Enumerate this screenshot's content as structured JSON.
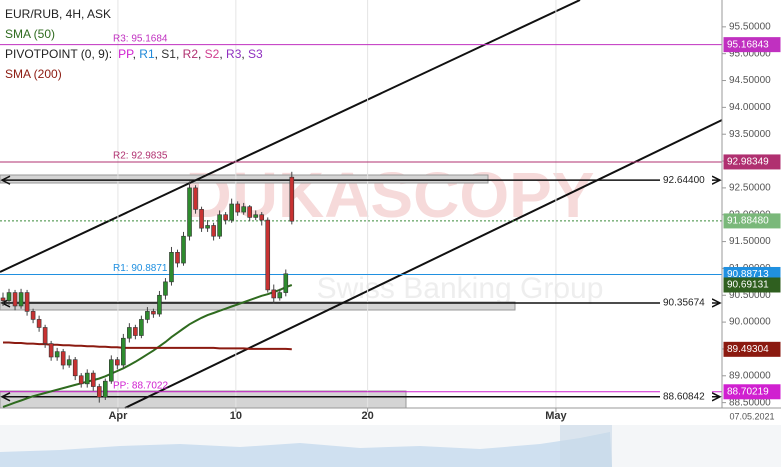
{
  "chart_data": {
    "type": "candlestick",
    "title": "EUR/RUB, 4H, ASK",
    "up_color": "#2e8b2e",
    "down_color": "#c83232",
    "open": [
      90.45,
      90.4,
      90.55,
      90.3,
      90.55,
      90.2,
      90.05,
      89.9,
      89.6,
      89.35,
      89.45,
      89.2,
      89.3,
      89.0,
      88.85,
      89.05,
      88.8,
      88.6,
      88.9,
      89.3,
      89.2,
      89.7,
      89.9,
      89.75,
      90.05,
      90.2,
      90.15,
      90.5,
      90.75,
      91.3,
      91.1,
      91.6,
      92.5,
      92.1,
      91.75,
      91.8,
      91.6,
      92.0,
      91.9,
      92.2,
      92.05,
      92.15,
      91.95,
      92.0,
      91.9,
      90.6,
      90.45,
      90.55,
      92.7
    ],
    "high": [
      90.55,
      90.62,
      90.6,
      90.62,
      90.6,
      90.25,
      90.12,
      89.95,
      89.65,
      89.52,
      89.5,
      89.38,
      89.35,
      89.05,
      89.12,
      89.1,
      88.85,
      88.95,
      89.38,
      89.35,
      89.78,
      89.98,
      89.95,
      90.12,
      90.28,
      90.25,
      90.58,
      90.82,
      91.4,
      91.35,
      91.68,
      92.62,
      92.55,
      92.15,
      91.9,
      91.85,
      92.08,
      92.05,
      92.3,
      92.25,
      92.22,
      92.18,
      92.08,
      92.05,
      91.95,
      90.7,
      90.62,
      90.98,
      92.8
    ],
    "low": [
      90.3,
      90.32,
      90.22,
      90.25,
      90.12,
      89.98,
      89.82,
      89.52,
      89.28,
      89.28,
      89.12,
      89.15,
      88.92,
      88.78,
      88.78,
      88.72,
      88.5,
      88.55,
      88.85,
      89.12,
      89.15,
      89.62,
      89.68,
      89.7,
      89.98,
      90.08,
      90.1,
      90.42,
      90.68,
      91.02,
      91.05,
      91.52,
      92.02,
      91.68,
      91.68,
      91.52,
      91.55,
      91.82,
      91.85,
      91.98,
      92.0,
      91.88,
      91.9,
      91.8,
      90.55,
      90.35,
      90.4,
      90.48,
      91.82
    ],
    "close": [
      90.4,
      90.55,
      90.3,
      90.55,
      90.2,
      90.05,
      89.9,
      89.6,
      89.35,
      89.45,
      89.2,
      89.3,
      89.0,
      88.85,
      89.05,
      88.8,
      88.6,
      88.9,
      89.3,
      89.2,
      89.7,
      89.9,
      89.75,
      90.05,
      90.2,
      90.15,
      90.5,
      90.75,
      91.3,
      91.1,
      91.6,
      92.5,
      92.1,
      91.75,
      91.8,
      91.6,
      92.0,
      91.9,
      92.2,
      92.05,
      92.15,
      91.95,
      92.0,
      91.9,
      90.6,
      90.45,
      90.55,
      90.9,
      91.88
    ],
    "last_price": {
      "value": 91.8848,
      "label": "91.88480"
    },
    "series": [
      {
        "name": "SMA (50)",
        "color": "#2f6b1f",
        "values": [
          88.42,
          88.46,
          88.5,
          88.54,
          88.58,
          88.62,
          88.65,
          88.68,
          88.71,
          88.74,
          88.77,
          88.8,
          88.83,
          88.86,
          88.89,
          88.92,
          88.95,
          88.99,
          89.04,
          89.09,
          89.14,
          89.2,
          89.26,
          89.33,
          89.4,
          89.47,
          89.55,
          89.63,
          89.72,
          89.8,
          89.88,
          89.96,
          90.02,
          90.08,
          90.13,
          90.17,
          90.21,
          90.25,
          90.29,
          90.33,
          90.37,
          90.41,
          90.45,
          90.49,
          90.52,
          90.56,
          90.6,
          90.65,
          90.69131
        ]
      },
      {
        "name": "SMA (200)",
        "color": "#8b1a10",
        "values": [
          89.62,
          89.62,
          89.61,
          89.61,
          89.6,
          89.6,
          89.59,
          89.59,
          89.58,
          89.58,
          89.57,
          89.57,
          89.56,
          89.56,
          89.55,
          89.55,
          89.54,
          89.54,
          89.53,
          89.53,
          89.52,
          89.52,
          89.52,
          89.52,
          89.52,
          89.52,
          89.52,
          89.52,
          89.52,
          89.52,
          89.52,
          89.52,
          89.52,
          89.52,
          89.52,
          89.52,
          89.51,
          89.51,
          89.51,
          89.51,
          89.51,
          89.5,
          89.5,
          89.5,
          89.5,
          89.5,
          89.5,
          89.5,
          89.49304
        ]
      }
    ],
    "pivot_label": "PIVOTPOINT (0, 9):",
    "pivot_legend": [
      {
        "name": "PP",
        "color": "#d020d0"
      },
      {
        "name": "R1",
        "color": "#1e88d8"
      },
      {
        "name": "S1",
        "color": "#333333"
      },
      {
        "name": "R2",
        "color": "#b03070"
      },
      {
        "name": "S2",
        "color": "#d04090"
      },
      {
        "name": "R3",
        "color": "#9030c0"
      },
      {
        "name": "S3",
        "color": "#9030c0"
      }
    ],
    "pivot_levels": [
      {
        "text": "R3: 95.1684",
        "value": 95.16843,
        "color": "#c030c0"
      },
      {
        "text": "R2: 92.9835",
        "value": 92.98349,
        "color": "#b03070"
      },
      {
        "text": "R1: 90.8871",
        "value": 90.88713,
        "color": "#2090e0"
      },
      {
        "text": "PP: 88.7022",
        "value": 88.70219,
        "color": "#d020d0"
      }
    ],
    "levels": [
      {
        "value": 92.644,
        "label": "92.64400"
      },
      {
        "value": 90.35674,
        "label": "90.35674"
      },
      {
        "value": 88.60842,
        "label": "88.60842"
      }
    ],
    "watermark": [
      "DUKASCOPY",
      "Swiss Banking Group"
    ],
    "date_label": "07.05.2021",
    "xlim": [
      0,
      120
    ],
    "xticks": [
      {
        "value": 19.6,
        "label": "Apr"
      },
      {
        "value": 39.2,
        "label": "10"
      },
      {
        "value": 61.1,
        "label": "20"
      },
      {
        "value": 92.4,
        "label": "May"
      }
    ],
    "ylim": [
      88.4,
      96.0
    ],
    "yticks": [
      {
        "value": 88.5,
        "label": "88.50000"
      },
      {
        "value": 89,
        "label": "89.00000"
      },
      {
        "value": 89.5,
        "label": "89.50000"
      },
      {
        "value": 90,
        "label": "90.00000"
      },
      {
        "value": 90.5,
        "label": "90.50000"
      },
      {
        "value": 91,
        "label": "91.00000"
      },
      {
        "value": 91.5,
        "label": "91.50000"
      },
      {
        "value": 92,
        "label": "92.00000"
      },
      {
        "value": 92.5,
        "label": "92.50000"
      },
      {
        "value": 93,
        "label": "93.00000"
      },
      {
        "value": 93.5,
        "label": "93.50000"
      },
      {
        "value": 94,
        "label": "94.00000"
      },
      {
        "value": 94.5,
        "label": "94.50000"
      },
      {
        "value": 95,
        "label": "95.00000"
      },
      {
        "value": 95.5,
        "label": "95.50000"
      }
    ]
  }
}
